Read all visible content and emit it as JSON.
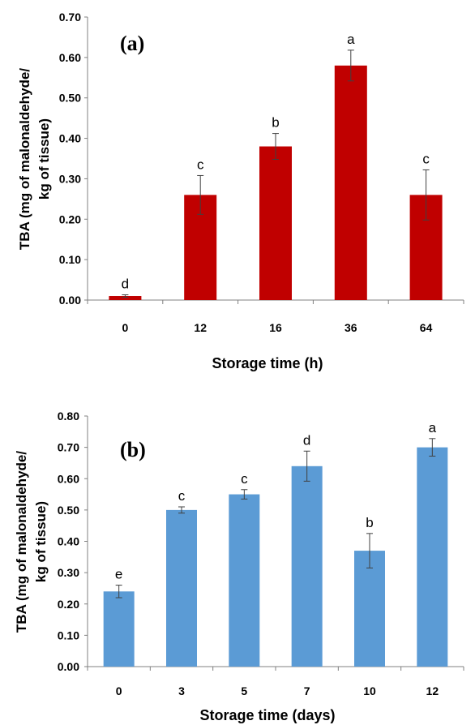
{
  "chart_data": [
    {
      "type": "bar",
      "panel_label": "(a)",
      "categories": [
        "0",
        "12",
        "16",
        "36",
        "64"
      ],
      "values": [
        0.01,
        0.26,
        0.38,
        0.58,
        0.26
      ],
      "errors": [
        0.003,
        0.048,
        0.032,
        0.038,
        0.062
      ],
      "letters": [
        "d",
        "c",
        "b",
        "a",
        "c"
      ],
      "color": "#c00000",
      "xlabel": "Storage time (h)",
      "ylabel_lines": [
        "TBA (mg of  malonaldehyde/",
        "kg of tissue)"
      ],
      "ylim": [
        0,
        0.7
      ],
      "yticks": [
        "0.00",
        "0.10",
        "0.20",
        "0.30",
        "0.40",
        "0.50",
        "0.60",
        "0.70"
      ],
      "grid": false
    },
    {
      "type": "bar",
      "panel_label": "(b)",
      "categories": [
        "0",
        "3",
        "5",
        "7",
        "10",
        "12"
      ],
      "values": [
        0.24,
        0.5,
        0.55,
        0.64,
        0.37,
        0.7
      ],
      "errors": [
        0.02,
        0.01,
        0.015,
        0.048,
        0.055,
        0.028
      ],
      "letters": [
        "e",
        "c",
        "c",
        "d",
        "b",
        "a"
      ],
      "color": "#5b9bd5",
      "xlabel": "Storage time (days)",
      "ylabel_lines": [
        "TBA (mg of malonaldehyde/",
        "kg of tissue)"
      ],
      "ylim": [
        0,
        0.8
      ],
      "yticks": [
        "0.00",
        "0.10",
        "0.20",
        "0.30",
        "0.40",
        "0.50",
        "0.60",
        "0.70",
        "0.80"
      ],
      "grid": false
    }
  ]
}
